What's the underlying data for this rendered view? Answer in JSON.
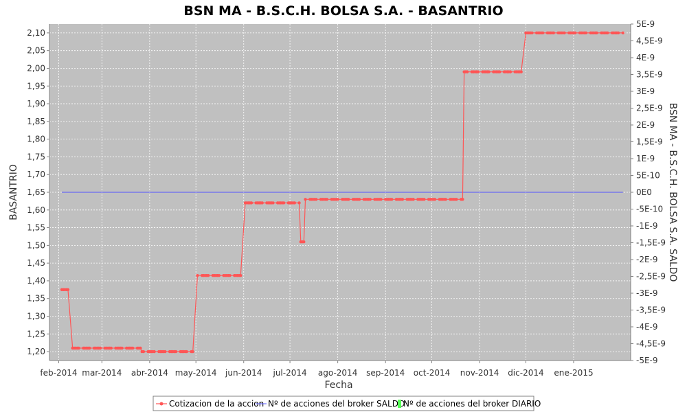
{
  "chart_data": {
    "type": "line",
    "title": "BSN MA - B.S.C.H. BOLSA S.A. - BASANTRIO",
    "xlabel": "Fecha",
    "ylabel": "BASANTRIO",
    "y2label": "BSN MA - B.S.C.H. BOLSA S.A. SALDO",
    "x_ticks": [
      "feb-2014",
      "mar-2014",
      "abr-2014",
      "may-2014",
      "jun-2014",
      "jul-2014",
      "ago-2014",
      "sep-2014",
      "oct-2014",
      "nov-2014",
      "dic-2014",
      "ene-2015"
    ],
    "x_tick_dates": [
      "2014-02-01",
      "2014-03-01",
      "2014-04-01",
      "2014-05-01",
      "2014-06-01",
      "2014-07-01",
      "2014-08-01",
      "2014-09-01",
      "2014-10-01",
      "2014-11-01",
      "2014-12-01",
      "2015-01-01"
    ],
    "xlim": [
      "2014-01-26",
      "2015-02-07"
    ],
    "y_ticks": [
      "1,20",
      "1,25",
      "1,30",
      "1,35",
      "1,40",
      "1,45",
      "1,50",
      "1,55",
      "1,60",
      "1,65",
      "1,70",
      "1,75",
      "1,80",
      "1,85",
      "1,90",
      "1,95",
      "2,00",
      "2,05",
      "2,10"
    ],
    "ylim": [
      1.175,
      2.125
    ],
    "y2_ticks": [
      "-5E-9",
      "-4,5E-9",
      "-4E-9",
      "-3,5E-9",
      "-3E-9",
      "-2,5E-9",
      "-2E-9",
      "-1,5E-9",
      "-1E-9",
      "-5E-10",
      "0E0",
      "5E-10",
      "1E-9",
      "1,5E-9",
      "2E-9",
      "2,5E-9",
      "3E-9",
      "3,5E-9",
      "4E-9",
      "4,5E-9",
      "5E-9"
    ],
    "y2lim": [
      -5e-09,
      5e-09
    ],
    "grid": true,
    "legend_position": "bottom",
    "background_color": "#c0c0c0",
    "series": [
      {
        "name": "Cotizacion de la accion",
        "color": "#ff5555",
        "axis": "left",
        "segments": [
          {
            "from": "2014-02-03",
            "to": "2014-02-07",
            "value": 1.375
          },
          {
            "from": "2014-02-10",
            "to": "2014-03-26",
            "value": 1.21
          },
          {
            "from": "2014-03-27",
            "to": "2014-04-29",
            "value": 1.2
          },
          {
            "from": "2014-05-02",
            "to": "2014-05-31",
            "value": 1.415
          },
          {
            "from": "2014-06-02",
            "to": "2014-07-07",
            "value": 1.62
          },
          {
            "from": "2014-07-08",
            "to": "2014-07-10",
            "value": 1.51
          },
          {
            "from": "2014-07-11",
            "to": "2014-10-21",
            "value": 1.63
          },
          {
            "from": "2014-10-22",
            "to": "2014-11-28",
            "value": 1.99
          },
          {
            "from": "2014-12-01",
            "to": "2015-02-02",
            "value": 2.1
          }
        ]
      },
      {
        "name": "Nº de acciones del broker SALDO",
        "color": "#5555ff",
        "axis": "right",
        "x": [
          "2014-02-03",
          "2015-02-02"
        ],
        "values": [
          0,
          0
        ]
      },
      {
        "name": "Nº de acciones del broker DIARIO",
        "color": "#55ff55",
        "axis": "right",
        "x": [],
        "values": []
      }
    ]
  }
}
